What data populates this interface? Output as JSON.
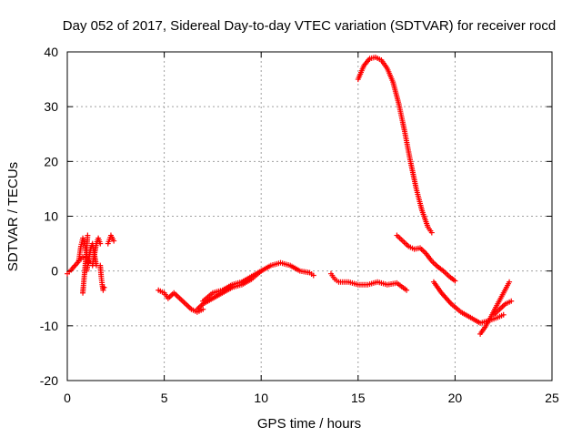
{
  "chart_data": {
    "type": "scatter",
    "title": "Day 052 of 2017, Sidereal Day-to-day VTEC variation (SDTVAR) for receiver rocd",
    "xlabel": "GPS time / hours",
    "ylabel": "SDTVAR / TECUs",
    "xlim": [
      0,
      25
    ],
    "ylim": [
      -20,
      40
    ],
    "xticks": [
      0,
      5,
      10,
      15,
      20,
      25
    ],
    "yticks": [
      -20,
      -10,
      0,
      10,
      20,
      30,
      40
    ],
    "xtick_labels": [
      "0",
      "5",
      "10",
      "15",
      "20",
      "25"
    ],
    "ytick_labels": [
      "-20",
      "-10",
      "0",
      "10",
      "20",
      "30",
      "40"
    ],
    "grid": true,
    "marker": "+",
    "color": "#ff0000",
    "series": [
      {
        "name": "seg1",
        "x": [
          0.0,
          0.2,
          0.4,
          0.6,
          0.8
        ],
        "y": [
          -0.5,
          0.2,
          1.0,
          1.8,
          2.5
        ]
      },
      {
        "name": "seg2",
        "x": [
          0.6,
          0.7,
          0.8,
          0.9,
          1.0,
          1.1
        ],
        "y": [
          2.0,
          4.5,
          6.0,
          5.0,
          3.0,
          1.5
        ]
      },
      {
        "name": "seg3",
        "x": [
          0.8,
          0.85,
          0.9,
          0.95,
          1.0,
          1.05
        ],
        "y": [
          -4.0,
          -2.0,
          0.0,
          2.0,
          4.0,
          6.5
        ]
      },
      {
        "name": "seg4",
        "x": [
          1.0,
          1.1,
          1.2,
          1.3,
          1.4,
          1.5
        ],
        "y": [
          0.0,
          2.0,
          4.0,
          5.0,
          3.0,
          1.0
        ]
      },
      {
        "name": "seg5",
        "x": [
          1.3,
          1.4,
          1.5,
          1.6,
          1.7
        ],
        "y": [
          1.0,
          3.0,
          5.0,
          6.0,
          5.0
        ]
      },
      {
        "name": "seg6",
        "x": [
          1.7,
          1.75,
          1.8,
          1.85,
          1.9
        ],
        "y": [
          1.0,
          -1.0,
          -2.5,
          -3.5,
          -3.0
        ]
      },
      {
        "name": "seg7",
        "x": [
          2.1,
          2.25,
          2.4
        ],
        "y": [
          5.0,
          6.5,
          5.5
        ]
      },
      {
        "name": "seg8",
        "x": [
          4.7,
          5.0,
          5.2,
          5.5,
          5.8,
          6.1,
          6.4,
          6.7,
          7.0
        ],
        "y": [
          -3.5,
          -4.0,
          -5.0,
          -4.0,
          -5.0,
          -6.0,
          -7.0,
          -7.5,
          -7.0
        ]
      },
      {
        "name": "seg9",
        "x": [
          6.7,
          7.0,
          7.5,
          8.0,
          8.5,
          9.0,
          9.5,
          10.0,
          10.5,
          11.0,
          11.5,
          12.0,
          12.5,
          12.7
        ],
        "y": [
          -7.0,
          -6.0,
          -5.0,
          -4.0,
          -3.0,
          -2.5,
          -1.5,
          0.0,
          1.0,
          1.5,
          1.0,
          0.0,
          -0.3,
          -0.8
        ]
      },
      {
        "name": "seg10",
        "x": [
          7.0,
          7.5,
          8.0,
          8.5,
          9.0,
          9.5,
          10.0
        ],
        "y": [
          -5.5,
          -4.0,
          -3.5,
          -2.5,
          -2.0,
          -1.0,
          0.0
        ]
      },
      {
        "name": "seg11",
        "x": [
          13.6,
          13.8,
          14.0,
          14.5,
          15.0,
          15.5,
          16.0,
          16.5,
          17.0,
          17.5
        ],
        "y": [
          -0.5,
          -1.5,
          -2.0,
          -2.0,
          -2.5,
          -2.5,
          -2.0,
          -2.5,
          -2.2,
          -3.5
        ]
      },
      {
        "name": "seg12",
        "x": [
          15.0,
          15.3,
          15.6,
          15.9,
          16.2,
          16.5,
          16.8,
          17.1,
          17.4,
          17.7,
          18.0,
          18.3,
          18.6,
          18.8
        ],
        "y": [
          35.0,
          37.5,
          38.8,
          39.0,
          38.5,
          37.0,
          34.5,
          30.5,
          25.5,
          20.0,
          15.0,
          11.0,
          8.0,
          7.0
        ]
      },
      {
        "name": "seg13",
        "x": [
          17.0,
          17.3,
          17.6,
          17.9,
          18.2,
          18.5,
          18.8,
          19.1,
          19.4,
          19.7,
          20.0
        ],
        "y": [
          6.5,
          5.5,
          4.5,
          4.0,
          4.2,
          3.2,
          1.8,
          0.8,
          0.0,
          -1.0,
          -1.8
        ]
      },
      {
        "name": "seg14",
        "x": [
          18.9,
          19.3,
          19.8,
          20.3,
          20.8,
          21.3,
          21.8,
          22.2,
          22.5
        ],
        "y": [
          -2.0,
          -4.0,
          -6.0,
          -7.5,
          -8.5,
          -9.5,
          -9.0,
          -8.5,
          -8.0
        ]
      },
      {
        "name": "seg15",
        "x": [
          21.3,
          21.6,
          21.9,
          22.2,
          22.5,
          22.8
        ],
        "y": [
          -11.5,
          -10.0,
          -8.0,
          -6.0,
          -4.0,
          -2.0
        ]
      },
      {
        "name": "seg16",
        "x": [
          22.0,
          22.3,
          22.6,
          22.9
        ],
        "y": [
          -8.0,
          -7.0,
          -6.0,
          -5.5
        ]
      }
    ]
  }
}
